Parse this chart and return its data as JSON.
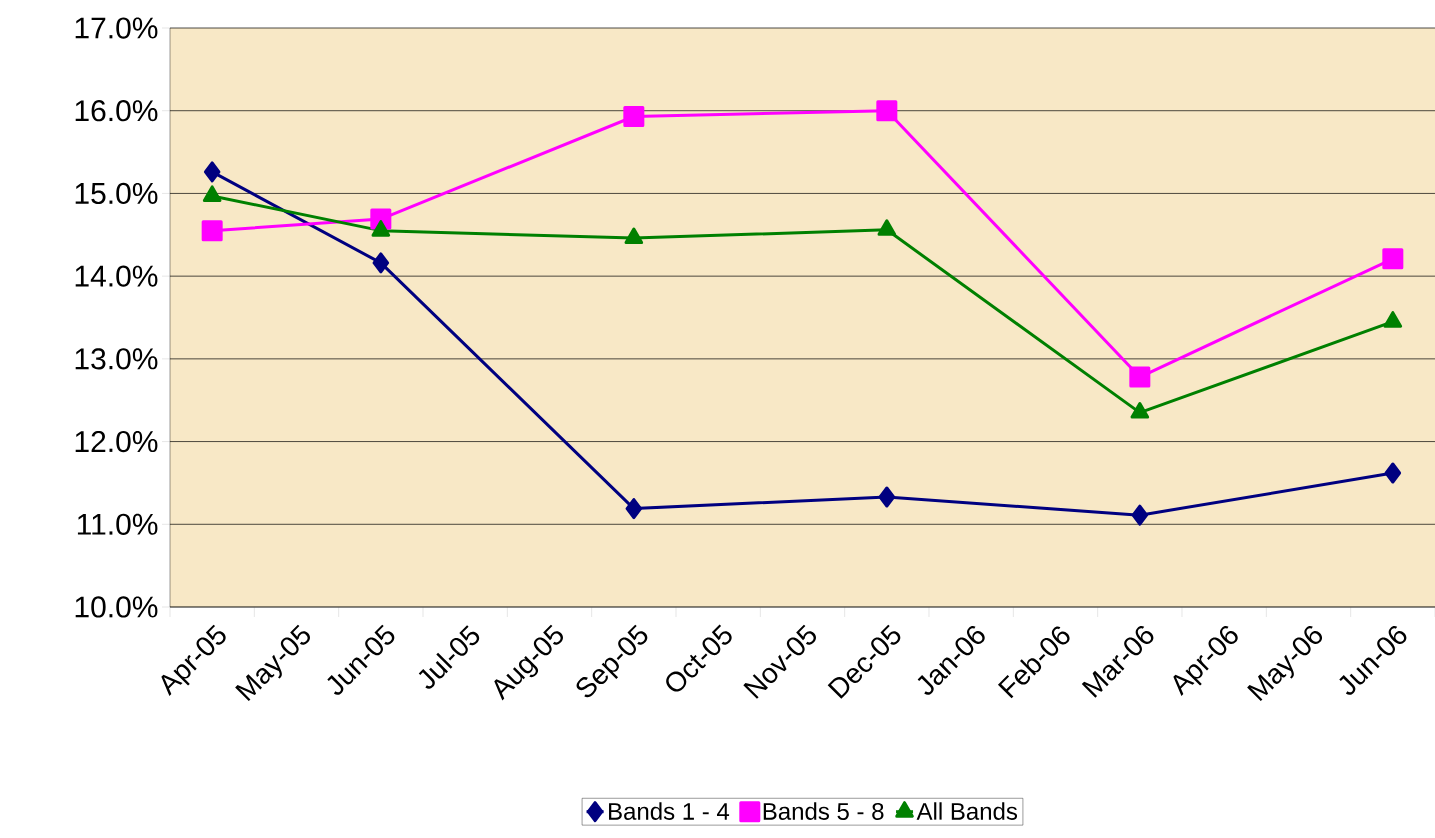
{
  "chart_data": {
    "type": "line",
    "categories": [
      "Apr-05",
      "May-05",
      "Jun-05",
      "Jul-05",
      "Aug-05",
      "Sep-05",
      "Oct-05",
      "Nov-05",
      "Dec-05",
      "Jan-06",
      "Feb-06",
      "Mar-06",
      "Apr-06",
      "May-06",
      "Jun-06"
    ],
    "series": [
      {
        "name": "Bands 1 - 4",
        "color": "#000080",
        "marker": "diamond",
        "values": [
          15.26,
          null,
          14.16,
          null,
          null,
          11.19,
          null,
          null,
          11.33,
          null,
          null,
          11.11,
          null,
          null,
          11.62
        ]
      },
      {
        "name": "Bands  5 - 8",
        "color": "#ff00ff",
        "marker": "square",
        "values": [
          14.55,
          null,
          14.69,
          null,
          null,
          15.93,
          null,
          null,
          16.0,
          null,
          null,
          12.78,
          null,
          null,
          14.21
        ]
      },
      {
        "name": "All Bands",
        "color": "#008000",
        "marker": "triangle",
        "values": [
          14.97,
          null,
          14.55,
          null,
          null,
          14.46,
          null,
          null,
          14.56,
          null,
          null,
          12.35,
          null,
          null,
          13.45
        ]
      }
    ],
    "ylim": [
      10,
      17
    ],
    "yticks": [
      {
        "value": 10,
        "label": "10.0%"
      },
      {
        "value": 11,
        "label": "11.0%"
      },
      {
        "value": 12,
        "label": "12.0%"
      },
      {
        "value": 13,
        "label": "13.0%"
      },
      {
        "value": 14,
        "label": "14.0%"
      },
      {
        "value": 15,
        "label": "15.0%"
      },
      {
        "value": 16,
        "label": "16.0%"
      },
      {
        "value": 17,
        "label": "17.0%"
      }
    ],
    "grid": "y",
    "legend": "bottom",
    "line_style": "solid"
  }
}
